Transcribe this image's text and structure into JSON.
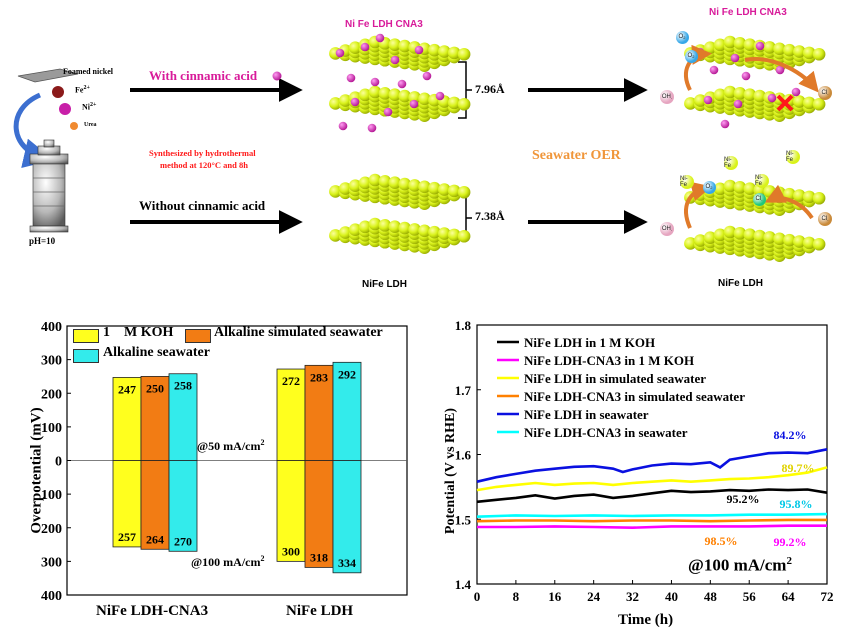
{
  "schematic": {
    "foamed_nickel": "Foamed nickel",
    "fe_label": "Fe",
    "fe_sup": "2+",
    "ni_label": "Ni",
    "ni_sup": "2+",
    "urea_label": "Urea",
    "ph_label": "pH=10",
    "with_acid": "With cinnamic acid",
    "without_acid": "Without cinnamic acid",
    "synthesis_line1": "Synthesized by hydrothermal",
    "synthesis_line2": "method at 120°C and 8h",
    "top_title": "Ni Fe LDH CNA3",
    "top_right_title": "Ni Fe LDH CNA3",
    "spacing_top": "7.96Å",
    "spacing_bottom": "7.38Å",
    "bottom_label": "NiFe LDH",
    "bottom_right_label": "NiFe LDH",
    "seawater_oer": "Seawater OER",
    "o2": "O",
    "o2_sub": "2",
    "oh": "OH",
    "oh_sup": "-",
    "cl": "Cl",
    "cl_sup": "-",
    "nife_ball": "Ni-Fe",
    "colors": {
      "sheet": "#d9f21a",
      "sheet_dark": "#a7bf00",
      "magenta": "#d020c0",
      "orange": "#e88b2a",
      "red_text": "#ff1a1a",
      "pink_text": "#d81b9a",
      "seawater_oer": "#f0963a",
      "o2_blue": "#36a8e8",
      "oh_pink": "#e6a5c0",
      "cl_brown": "#c98a3a"
    }
  },
  "chart_data": [
    {
      "type": "bar",
      "categories": [
        "NiFe LDH-CNA3",
        "NiFe LDH"
      ],
      "ylabel": "Overpotential (mV)",
      "ytick_labels": [
        "400",
        "300",
        "200",
        "100",
        "0",
        "100",
        "200",
        "300",
        "400"
      ],
      "series": [
        {
          "name": "1    M KOH",
          "color": "#ffff1e",
          "values_50": [
            247,
            272
          ],
          "values_100": [
            257,
            300
          ]
        },
        {
          "name": "Alkaline simulated seawater",
          "color": "#f27c14",
          "values_50": [
            250,
            283
          ],
          "values_100": [
            264,
            318
          ]
        },
        {
          "name": "Alkaline seawater",
          "color": "#33ebeb",
          "values_50": [
            258,
            292
          ],
          "values_100": [
            270,
            334
          ]
        }
      ],
      "annotation_50": "@50 mA/cm",
      "annotation_100": "@100 mA/cm",
      "annotation_sup": "2",
      "ylim": [
        -400,
        400
      ]
    },
    {
      "type": "line",
      "xlabel": "Time (h)",
      "ylabel": "Potential (V vs RHE)",
      "xlim": [
        0,
        72
      ],
      "ylim": [
        1.4,
        1.8
      ],
      "xticks": [
        0,
        8,
        16,
        24,
        32,
        40,
        48,
        56,
        64,
        72
      ],
      "yticks": [
        "1.4",
        "1.5",
        "1.6",
        "1.7",
        "1.8"
      ],
      "annotation": "@100 mA/cm",
      "annotation_sup": "2",
      "series": [
        {
          "name": "NiFe LDH in 1 M KOH",
          "color": "#000000",
          "retention": "95.2%",
          "points": [
            [
              0,
              1.527
            ],
            [
              4,
              1.53
            ],
            [
              8,
              1.533
            ],
            [
              12,
              1.537
            ],
            [
              16,
              1.532
            ],
            [
              20,
              1.536
            ],
            [
              24,
              1.538
            ],
            [
              28,
              1.533
            ],
            [
              32,
              1.536
            ],
            [
              36,
              1.54
            ],
            [
              40,
              1.544
            ],
            [
              44,
              1.542
            ],
            [
              48,
              1.543
            ],
            [
              52,
              1.545
            ],
            [
              56,
              1.544
            ],
            [
              60,
              1.546
            ],
            [
              64,
              1.545
            ],
            [
              68,
              1.546
            ],
            [
              72,
              1.541
            ]
          ]
        },
        {
          "name": "NiFe LDH-CNA3 in 1 M KOH",
          "color": "#ff00ff",
          "retention": "99.2%",
          "points": [
            [
              0,
              1.488
            ],
            [
              8,
              1.488
            ],
            [
              16,
              1.489
            ],
            [
              24,
              1.488
            ],
            [
              32,
              1.487
            ],
            [
              40,
              1.489
            ],
            [
              48,
              1.489
            ],
            [
              56,
              1.489
            ],
            [
              64,
              1.49
            ],
            [
              72,
              1.49
            ]
          ]
        },
        {
          "name": "NiFe LDH in simulated seawater",
          "color": "#ffff00",
          "retention": "89.7%",
          "points": [
            [
              0,
              1.545
            ],
            [
              4,
              1.55
            ],
            [
              8,
              1.553
            ],
            [
              12,
              1.556
            ],
            [
              16,
              1.553
            ],
            [
              20,
              1.555
            ],
            [
              24,
              1.556
            ],
            [
              28,
              1.553
            ],
            [
              32,
              1.556
            ],
            [
              36,
              1.558
            ],
            [
              40,
              1.56
            ],
            [
              44,
              1.558
            ],
            [
              48,
              1.56
            ],
            [
              52,
              1.562
            ],
            [
              56,
              1.563
            ],
            [
              60,
              1.565
            ],
            [
              64,
              1.568
            ],
            [
              68,
              1.572
            ],
            [
              72,
              1.58
            ]
          ]
        },
        {
          "name": "NiFe LDH-CNA3 in simulated seawater",
          "color": "#ff8000",
          "retention": "98.5%",
          "points": [
            [
              0,
              1.497
            ],
            [
              8,
              1.498
            ],
            [
              16,
              1.498
            ],
            [
              24,
              1.497
            ],
            [
              32,
              1.498
            ],
            [
              40,
              1.498
            ],
            [
              48,
              1.497
            ],
            [
              56,
              1.498
            ],
            [
              64,
              1.499
            ],
            [
              72,
              1.499
            ]
          ]
        },
        {
          "name": "NiFe LDH in seawater",
          "color": "#0a10e0",
          "retention": "84.2%",
          "points": [
            [
              0,
              1.558
            ],
            [
              4,
              1.565
            ],
            [
              8,
              1.57
            ],
            [
              12,
              1.575
            ],
            [
              16,
              1.578
            ],
            [
              20,
              1.581
            ],
            [
              24,
              1.582
            ],
            [
              28,
              1.578
            ],
            [
              30,
              1.573
            ],
            [
              32,
              1.577
            ],
            [
              36,
              1.583
            ],
            [
              40,
              1.586
            ],
            [
              44,
              1.585
            ],
            [
              48,
              1.588
            ],
            [
              50,
              1.58
            ],
            [
              52,
              1.592
            ],
            [
              56,
              1.597
            ],
            [
              60,
              1.602
            ],
            [
              64,
              1.603
            ],
            [
              68,
              1.602
            ],
            [
              72,
              1.608
            ]
          ]
        },
        {
          "name": "NiFe LDH-CNA3 in seawater",
          "color": "#00ffff",
          "retention": "95.8%",
          "points": [
            [
              0,
              1.504
            ],
            [
              8,
              1.506
            ],
            [
              16,
              1.505
            ],
            [
              24,
              1.506
            ],
            [
              32,
              1.505
            ],
            [
              40,
              1.506
            ],
            [
              48,
              1.506
            ],
            [
              56,
              1.507
            ],
            [
              64,
              1.507
            ],
            [
              72,
              1.508
            ]
          ]
        }
      ]
    }
  ]
}
